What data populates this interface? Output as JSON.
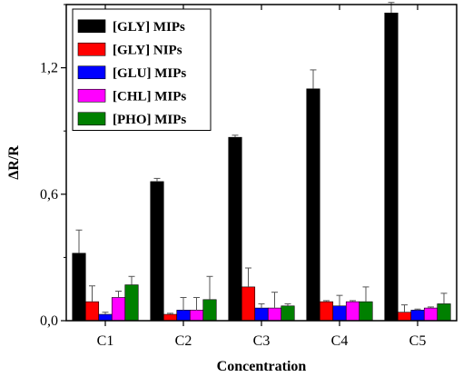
{
  "chart_data": {
    "type": "bar",
    "title": "",
    "xlabel": "Concentration",
    "ylabel": "ΔR/R",
    "ylim": [
      0,
      1.5
    ],
    "yticks": [
      0.0,
      0.6,
      1.2
    ],
    "ytick_labels": [
      "0,0",
      "0,6",
      "1,2"
    ],
    "categories": [
      "C1",
      "C2",
      "C3",
      "C4",
      "C5"
    ],
    "legend_position": "top-left",
    "grid": false,
    "series": [
      {
        "name": "[GLY] MIPs",
        "color": "#000000",
        "values": [
          0.32,
          0.66,
          0.87,
          1.1,
          1.46
        ],
        "errors": [
          0.11,
          0.015,
          0.01,
          0.09,
          0.05
        ]
      },
      {
        "name": "[GLY] NIPs",
        "color": "#ff0000",
        "values": [
          0.09,
          0.03,
          0.16,
          0.09,
          0.04
        ],
        "errors": [
          0.075,
          0.005,
          0.09,
          0.005,
          0.035
        ]
      },
      {
        "name": "[GLU] MIPs",
        "color": "#0000ff",
        "values": [
          0.03,
          0.05,
          0.06,
          0.07,
          0.05
        ],
        "errors": [
          0.01,
          0.06,
          0.02,
          0.05,
          0.005
        ]
      },
      {
        "name": "[CHL] MIPs",
        "color": "#ff00ff",
        "values": [
          0.11,
          0.05,
          0.06,
          0.09,
          0.06
        ],
        "errors": [
          0.03,
          0.06,
          0.075,
          0.005,
          0.005
        ]
      },
      {
        "name": "[PHO] MIPs",
        "color": "#008000",
        "values": [
          0.17,
          0.1,
          0.07,
          0.09,
          0.08
        ],
        "errors": [
          0.04,
          0.11,
          0.01,
          0.07,
          0.05
        ]
      }
    ]
  }
}
